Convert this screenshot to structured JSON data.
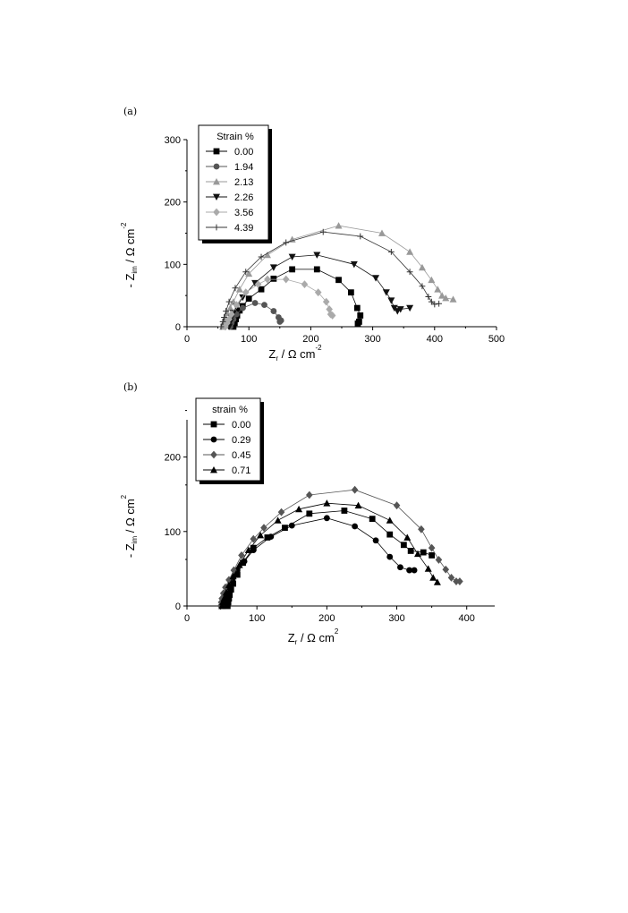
{
  "chart_data": [
    {
      "panel": "(a)",
      "type": "scatter",
      "xlim": [
        0,
        500
      ],
      "ylim": [
        0,
        300
      ],
      "xticks": [
        "0",
        "100",
        "200",
        "300",
        "400",
        "500"
      ],
      "yticks": [
        "0",
        "100",
        "200",
        "300"
      ],
      "xlabel": {
        "main": "Z",
        "sub": "r",
        "rest": " / Ω  cm",
        "sup": "-2"
      },
      "ylabel": {
        "lead": "- Z",
        "sub": "im",
        "rest": " / Ω cm",
        "sup": "-2"
      },
      "legend_title": "Strain %",
      "legend_position": "top-left",
      "series": [
        {
          "name": "0.00",
          "marker": "square",
          "color": "#000000",
          "points": [
            [
              75,
              0
            ],
            [
              77,
              6
            ],
            [
              79,
              12
            ],
            [
              81,
              18
            ],
            [
              85,
              26
            ],
            [
              90,
              33
            ],
            [
              100,
              45
            ],
            [
              120,
              60
            ],
            [
              140,
              77
            ],
            [
              170,
              92
            ],
            [
              210,
              92
            ],
            [
              245,
              75
            ],
            [
              265,
              55
            ],
            [
              275,
              30
            ],
            [
              280,
              18
            ],
            [
              278,
              8
            ],
            [
              276,
              5
            ]
          ]
        },
        {
          "name": "1.94",
          "marker": "circle",
          "color": "#555555",
          "points": [
            [
              70,
              0
            ],
            [
              72,
              6
            ],
            [
              75,
              12
            ],
            [
              80,
              20
            ],
            [
              90,
              30
            ],
            [
              110,
              38
            ],
            [
              125,
              35
            ],
            [
              140,
              25
            ],
            [
              148,
              15
            ],
            [
              152,
              10
            ],
            [
              150,
              8
            ]
          ]
        },
        {
          "name": "2.13",
          "marker": "triangle",
          "color": "#999999",
          "points": [
            [
              58,
              0
            ],
            [
              60,
              8
            ],
            [
              62,
              15
            ],
            [
              65,
              22
            ],
            [
              70,
              30
            ],
            [
              75,
              40
            ],
            [
              85,
              60
            ],
            [
              100,
              85
            ],
            [
              130,
              115
            ],
            [
              170,
              140
            ],
            [
              245,
              162
            ],
            [
              315,
              150
            ],
            [
              360,
              120
            ],
            [
              380,
              95
            ],
            [
              395,
              75
            ],
            [
              405,
              60
            ],
            [
              412,
              50
            ],
            [
              418,
              46
            ],
            [
              430,
              44
            ]
          ]
        },
        {
          "name": "2.26",
          "marker": "triangle-down",
          "color": "#111111",
          "points": [
            [
              68,
              0
            ],
            [
              70,
              8
            ],
            [
              72,
              15
            ],
            [
              75,
              22
            ],
            [
              80,
              32
            ],
            [
              90,
              47
            ],
            [
              110,
              70
            ],
            [
              140,
              95
            ],
            [
              170,
              112
            ],
            [
              210,
              115
            ],
            [
              270,
              100
            ],
            [
              305,
              78
            ],
            [
              322,
              55
            ],
            [
              330,
              42
            ],
            [
              335,
              30
            ],
            [
              340,
              25
            ],
            [
              345,
              28
            ],
            [
              360,
              30
            ]
          ]
        },
        {
          "name": "3.56",
          "marker": "diamond",
          "color": "#aaaaaa",
          "points": [
            [
              62,
              0
            ],
            [
              65,
              6
            ],
            [
              68,
              12
            ],
            [
              72,
              20
            ],
            [
              80,
              35
            ],
            [
              95,
              55
            ],
            [
              115,
              68
            ],
            [
              130,
              76
            ],
            [
              160,
              76
            ],
            [
              190,
              68
            ],
            [
              212,
              55
            ],
            [
              225,
              40
            ],
            [
              230,
              28
            ],
            [
              232,
              20
            ],
            [
              235,
              18
            ]
          ]
        },
        {
          "name": "4.39",
          "marker": "plus",
          "color": "#333333",
          "points": [
            [
              55,
              0
            ],
            [
              58,
              8
            ],
            [
              60,
              15
            ],
            [
              63,
              25
            ],
            [
              68,
              40
            ],
            [
              78,
              62
            ],
            [
              95,
              88
            ],
            [
              120,
              112
            ],
            [
              160,
              135
            ],
            [
              220,
              152
            ],
            [
              280,
              145
            ],
            [
              330,
              120
            ],
            [
              360,
              88
            ],
            [
              380,
              65
            ],
            [
              390,
              48
            ],
            [
              395,
              40
            ],
            [
              400,
              36
            ],
            [
              407,
              37
            ]
          ]
        }
      ]
    },
    {
      "panel": "(b)",
      "type": "scatter",
      "xlim": [
        0,
        440
      ],
      "ylim": [
        0,
        250
      ],
      "xticks": [
        "0",
        "100",
        "200",
        "300",
        "400"
      ],
      "yticks": [
        "0",
        "100",
        "200"
      ],
      "xlabel": {
        "main": "Z",
        "sub": "r",
        "rest": " / Ω  cm",
        "sup": "2"
      },
      "ylabel": {
        "lead": "- Z",
        "sub": "im",
        "rest": " / Ω cm",
        "sup": "2"
      },
      "legend_title": "strain %",
      "legend_position": "top-left",
      "series": [
        {
          "name": "0.00",
          "marker": "square",
          "color": "#000000",
          "points": [
            [
              58,
              0
            ],
            [
              59,
              5
            ],
            [
              60,
              10
            ],
            [
              61,
              15
            ],
            [
              63,
              22
            ],
            [
              66,
              30
            ],
            [
              72,
              42
            ],
            [
              80,
              58
            ],
            [
              95,
              78
            ],
            [
              115,
              92
            ],
            [
              140,
              105
            ],
            [
              175,
              124
            ],
            [
              225,
              128
            ],
            [
              265,
              117
            ],
            [
              290,
              96
            ],
            [
              310,
              82
            ],
            [
              320,
              74
            ],
            [
              338,
              72
            ],
            [
              350,
              68
            ]
          ]
        },
        {
          "name": "0.29",
          "marker": "circle",
          "color": "#000000",
          "points": [
            [
              52,
              0
            ],
            [
              53,
              5
            ],
            [
              55,
              10
            ],
            [
              57,
              17
            ],
            [
              60,
              25
            ],
            [
              65,
              35
            ],
            [
              72,
              48
            ],
            [
              82,
              60
            ],
            [
              95,
              75
            ],
            [
              120,
              93
            ],
            [
              150,
              108
            ],
            [
              200,
              118
            ],
            [
              240,
              107
            ],
            [
              270,
              88
            ],
            [
              290,
              66
            ],
            [
              305,
              52
            ],
            [
              318,
              48
            ],
            [
              325,
              48
            ]
          ]
        },
        {
          "name": "0.45",
          "marker": "diamond",
          "color": "#555555",
          "points": [
            [
              48,
              0
            ],
            [
              49,
              5
            ],
            [
              50,
              10
            ],
            [
              52,
              17
            ],
            [
              55,
              25
            ],
            [
              60,
              35
            ],
            [
              67,
              48
            ],
            [
              78,
              68
            ],
            [
              95,
              90
            ],
            [
              110,
              105
            ],
            [
              135,
              126
            ],
            [
              175,
              149
            ],
            [
              240,
              156
            ],
            [
              300,
              135
            ],
            [
              335,
              103
            ],
            [
              350,
              78
            ],
            [
              360,
              62
            ],
            [
              370,
              49
            ],
            [
              378,
              38
            ],
            [
              385,
              33
            ],
            [
              390,
              33
            ]
          ]
        },
        {
          "name": "0.71",
          "marker": "triangle",
          "color": "#000000",
          "points": [
            [
              50,
              0
            ],
            [
              51,
              5
            ],
            [
              53,
              10
            ],
            [
              56,
              18
            ],
            [
              60,
              28
            ],
            [
              66,
              40
            ],
            [
              75,
              55
            ],
            [
              88,
              75
            ],
            [
              105,
              95
            ],
            [
              130,
              115
            ],
            [
              160,
              130
            ],
            [
              200,
              138
            ],
            [
              245,
              135
            ],
            [
              290,
              115
            ],
            [
              315,
              92
            ],
            [
              330,
              70
            ],
            [
              345,
              50
            ],
            [
              352,
              38
            ],
            [
              358,
              32
            ]
          ]
        }
      ]
    }
  ]
}
